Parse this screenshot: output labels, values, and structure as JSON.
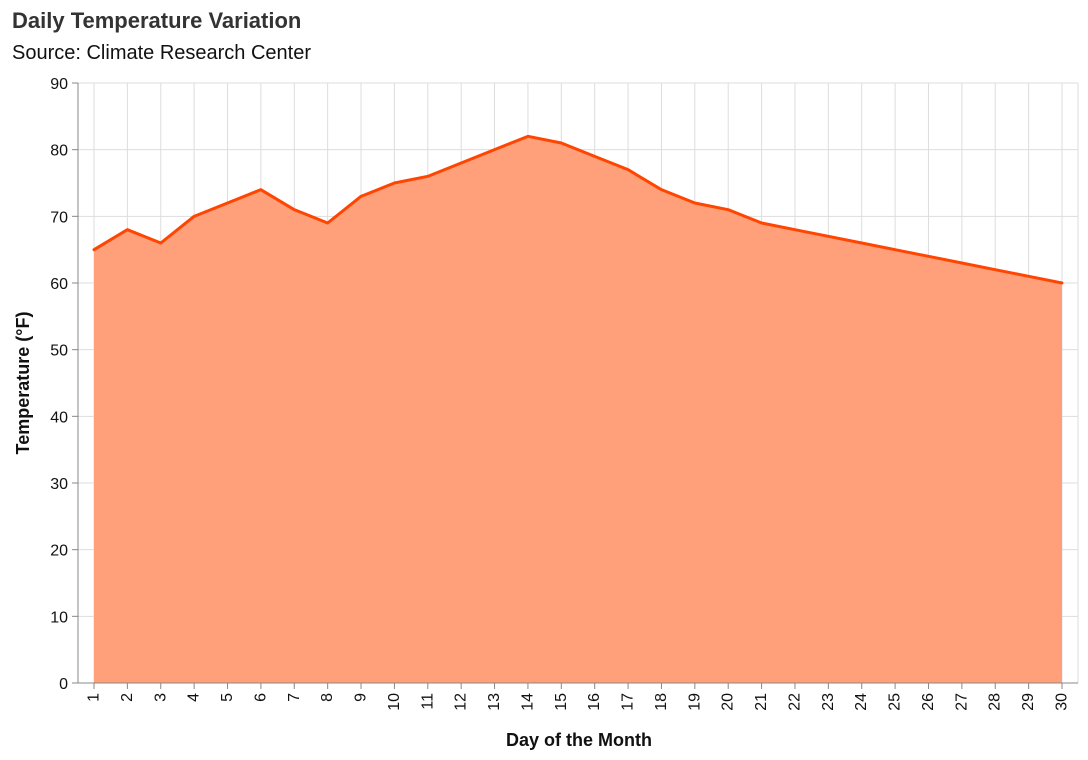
{
  "chart_data": {
    "type": "area",
    "title": "Daily Temperature Variation",
    "subtitle": "Source: Climate Research Center",
    "xlabel": "Day of the Month",
    "ylabel": "Temperature (°F)",
    "x": [
      1,
      2,
      3,
      4,
      5,
      6,
      7,
      8,
      9,
      10,
      11,
      12,
      13,
      14,
      15,
      16,
      17,
      18,
      19,
      20,
      21,
      22,
      23,
      24,
      25,
      26,
      27,
      28,
      29,
      30
    ],
    "series": [
      {
        "values": [
          65,
          68,
          66,
          70,
          72,
          74,
          71,
          69,
          73,
          75,
          76,
          78,
          80,
          82,
          81,
          79,
          77,
          74,
          72,
          71,
          69,
          68,
          67,
          66,
          65,
          64,
          63,
          62,
          61,
          60
        ]
      }
    ],
    "xlim": [
      1,
      30
    ],
    "ylim": [
      0,
      90
    ],
    "yticks": [
      0,
      10,
      20,
      30,
      40,
      50,
      60,
      70,
      80,
      90
    ],
    "grid": true,
    "legend": "none",
    "colors": {
      "line": "#ff4500",
      "fill": "#ffa07a",
      "grid": "#dddddd",
      "axis": "#888888"
    }
  }
}
